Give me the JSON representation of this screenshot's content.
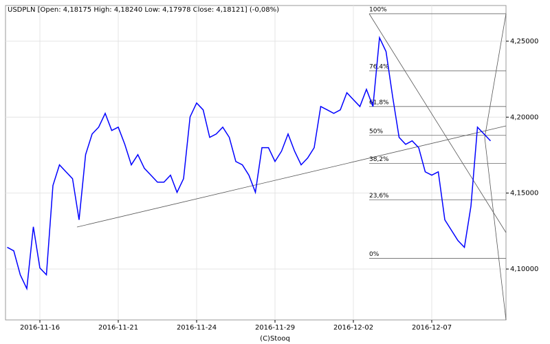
{
  "chart_data": {
    "type": "line",
    "title": "USDPLN [Open: 4,18175 High: 4,18240 Low: 4,17978 Close: 4,18121] (-0,08%)",
    "footer": "(C)Stooq",
    "categories": [
      null,
      null,
      null,
      null,
      null,
      "2016-11-16",
      null,
      null,
      null,
      null,
      null,
      null,
      null,
      null,
      null,
      null,
      null,
      "2016-11-21",
      null,
      null,
      null,
      null,
      null,
      null,
      null,
      null,
      null,
      null,
      null,
      "2016-11-24",
      null,
      null,
      null,
      null,
      null,
      null,
      null,
      null,
      null,
      null,
      null,
      "2016-11-29",
      null,
      null,
      null,
      null,
      null,
      null,
      null,
      null,
      null,
      null,
      null,
      "2016-12-02",
      null,
      null,
      null,
      null,
      null,
      null,
      null,
      null,
      null,
      null,
      null,
      "2016-12-07",
      null,
      null,
      null,
      null,
      null,
      null,
      null,
      null,
      null
    ],
    "series": [
      {
        "name": "USDPLN",
        "color": "#0000ff",
        "values": [
          4.1143,
          4.112,
          4.0962,
          4.0871,
          4.1278,
          4.1007,
          4.0962,
          4.155,
          4.1686,
          4.164,
          4.1595,
          4.1324,
          4.1753,
          4.1889,
          4.1934,
          4.2025,
          4.1912,
          4.1934,
          4.1821,
          4.1686,
          4.1753,
          4.1663,
          4.1618,
          4.1572,
          4.1572,
          4.1618,
          4.1505,
          4.1595,
          4.2002,
          4.2093,
          4.2048,
          4.1867,
          4.1889,
          4.1934,
          4.1867,
          4.1708,
          4.1686,
          4.1618,
          4.1505,
          4.1799,
          4.1799,
          4.1708,
          4.1776,
          4.1889,
          4.1776,
          4.1686,
          4.1731,
          4.1799,
          4.207,
          4.2048,
          4.2025,
          4.2048,
          4.2161,
          4.2115,
          4.207,
          4.2183,
          4.207,
          4.2523,
          4.2432,
          4.2138,
          4.1867,
          4.1821,
          4.1844,
          4.1799,
          4.164,
          4.1618,
          4.164,
          4.1324,
          4.1256,
          4.1188,
          4.1143,
          4.1414,
          4.1934,
          4.1889,
          4.1844
        ]
      }
    ],
    "fib_levels": [
      {
        "label": "100%",
        "value": 4.2681
      },
      {
        "label": "76,4%",
        "value": 4.2305
      },
      {
        "label": "61,8%",
        "value": 4.207
      },
      {
        "label": "50%",
        "value": 4.188
      },
      {
        "label": "38,2%",
        "value": 4.1695
      },
      {
        "label": "23,6%",
        "value": 4.1455
      },
      {
        "label": "0%",
        "value": 4.107
      }
    ],
    "ylim": [
      4.0665,
      4.2735
    ],
    "yticks": [
      {
        "value": 4.1,
        "label": "4,10000"
      },
      {
        "value": 4.15,
        "label": "4,15000"
      },
      {
        "value": 4.2,
        "label": "4,20000"
      },
      {
        "value": 4.25,
        "label": "4,25000"
      }
    ],
    "grid": true
  }
}
